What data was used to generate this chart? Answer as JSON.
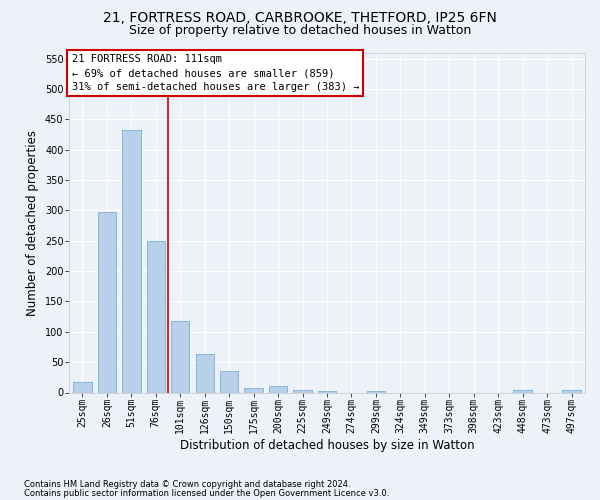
{
  "title_line1": "21, FORTRESS ROAD, CARBROOKE, THETFORD, IP25 6FN",
  "title_line2": "Size of property relative to detached houses in Watton",
  "xlabel": "Distribution of detached houses by size in Watton",
  "ylabel": "Number of detached properties",
  "bar_labels": [
    "25sqm",
    "26sqm",
    "51sqm",
    "76sqm",
    "101sqm",
    "126sqm",
    "150sqm",
    "175sqm",
    "200sqm",
    "225sqm",
    "249sqm",
    "274sqm",
    "299sqm",
    "324sqm",
    "349sqm",
    "373sqm",
    "398sqm",
    "423sqm",
    "448sqm",
    "473sqm",
    "497sqm"
  ],
  "bar_values": [
    17,
    297,
    432,
    250,
    117,
    63,
    35,
    8,
    11,
    4,
    3,
    0,
    2,
    0,
    0,
    0,
    0,
    0,
    4,
    0,
    4
  ],
  "bar_color": "#b8d0ea",
  "bar_edge_color": "#7aafd4",
  "vline_color": "#cc0000",
  "vline_x": 3.5,
  "annotation_line1": "21 FORTRESS ROAD: 111sqm",
  "annotation_line2": "← 69% of detached houses are smaller (859)",
  "annotation_line3": "31% of semi-detached houses are larger (383) →",
  "annotation_box_facecolor": "#ffffff",
  "annotation_box_edgecolor": "#cc0000",
  "ylim": [
    0,
    560
  ],
  "yticks": [
    0,
    50,
    100,
    150,
    200,
    250,
    300,
    350,
    400,
    450,
    500,
    550
  ],
  "background_color": "#edf2f9",
  "grid_color": "#ffffff",
  "spine_color": "#cccccc",
  "title_fontsize": 10,
  "subtitle_fontsize": 9,
  "tick_fontsize": 7,
  "ylabel_fontsize": 8.5,
  "xlabel_fontsize": 8.5,
  "footnote1": "Contains HM Land Registry data © Crown copyright and database right 2024.",
  "footnote2": "Contains public sector information licensed under the Open Government Licence v3.0.",
  "footnote_fontsize": 6
}
